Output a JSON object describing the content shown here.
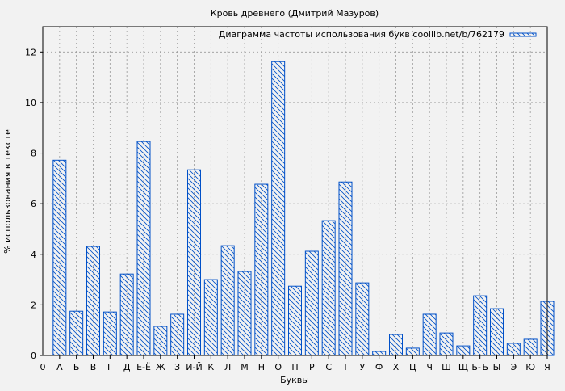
{
  "chart_data": {
    "type": "bar",
    "title": "Кровь древнего (Дмитрий Мазуров)",
    "xlabel": "Буквы",
    "ylabel": "% использования в тексте",
    "x_origin_label": "0",
    "categories": [
      "А",
      "Б",
      "В",
      "Г",
      "Д",
      "Е-Ё",
      "Ж",
      "З",
      "И-Й",
      "К",
      "Л",
      "М",
      "Н",
      "О",
      "П",
      "Р",
      "С",
      "Т",
      "У",
      "Ф",
      "Х",
      "Ц",
      "Ч",
      "Ш",
      "Щ",
      "Ь-Ъ",
      "Ы",
      "Э",
      "Ю",
      "Я"
    ],
    "series": [
      {
        "name": "Диаграмма частоты использования букв coollib.net/b/762179",
        "values": [
          7.72,
          1.75,
          4.31,
          1.72,
          3.22,
          8.46,
          1.15,
          1.63,
          7.34,
          3.0,
          4.34,
          3.32,
          6.77,
          11.62,
          2.74,
          4.12,
          5.33,
          6.86,
          2.87,
          0.16,
          0.83,
          0.29,
          1.63,
          0.89,
          0.38,
          2.36,
          1.85,
          0.48,
          0.64,
          2.14
        ]
      }
    ],
    "ylim": [
      0,
      13
    ],
    "yticks": [
      0,
      2,
      4,
      6,
      8,
      10,
      12
    ],
    "grid": true,
    "legend": "top-right",
    "colors": {
      "bar": "#0050c8",
      "background": "#f2f2f2",
      "grid": "#999999"
    }
  }
}
